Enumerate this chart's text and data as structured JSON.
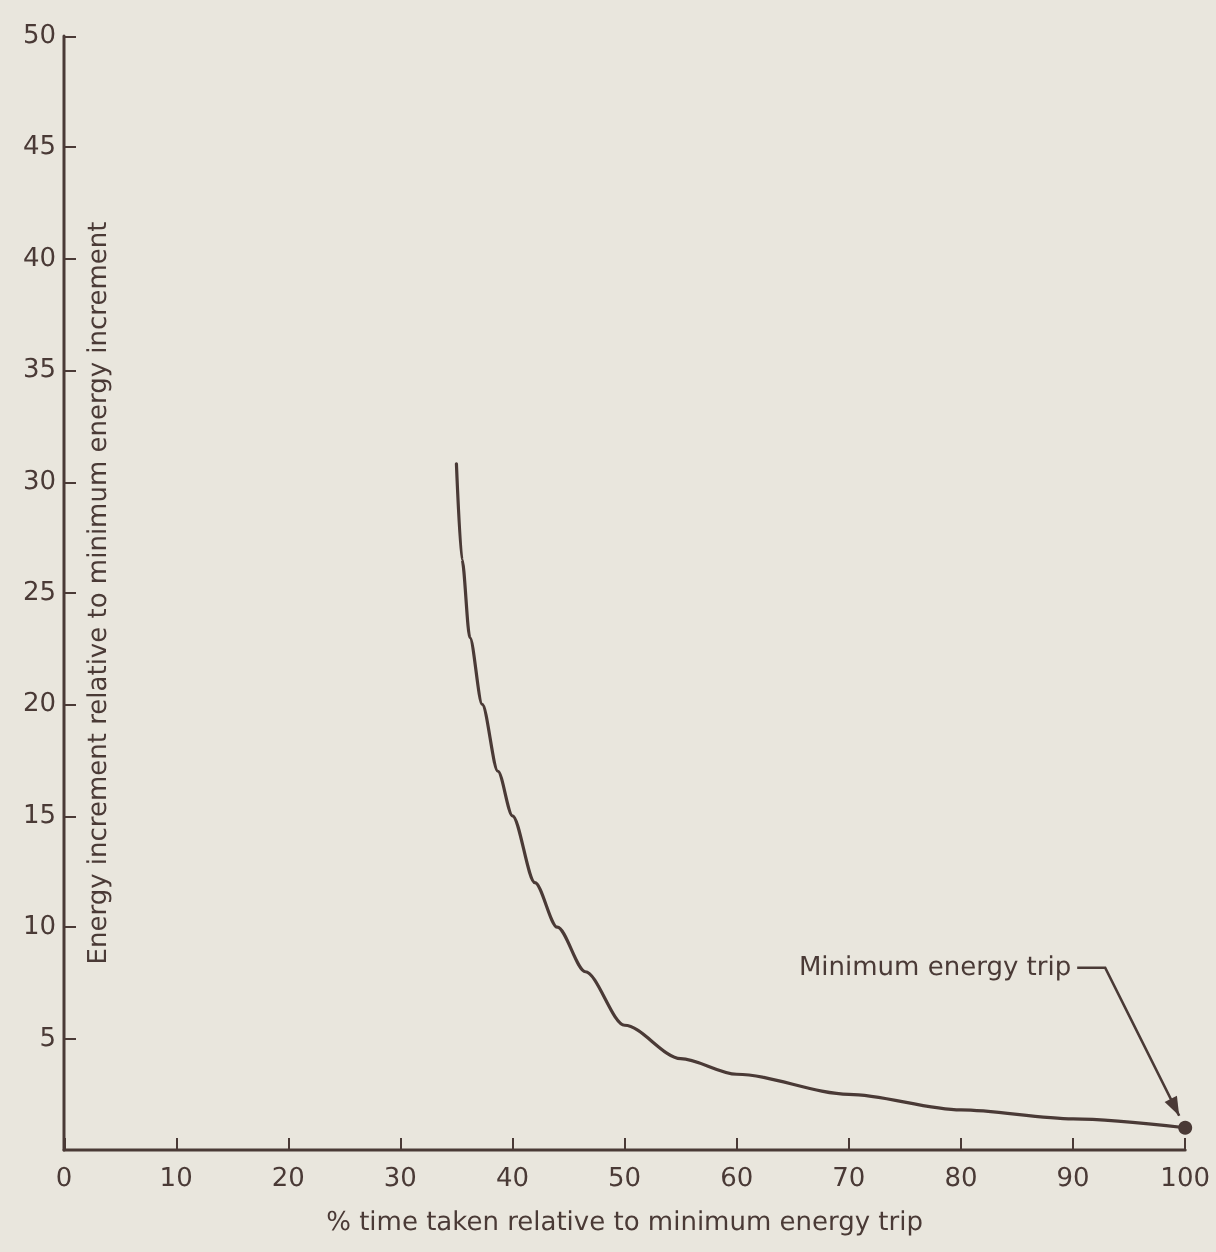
{
  "chart_data": {
    "type": "line",
    "xlabel": "% time taken relative to minimum energy trip",
    "ylabel": "Energy increment relative to minimum energy increment",
    "x": [
      35,
      35.5,
      36.2,
      37.3,
      38.7,
      40,
      42,
      44,
      46.5,
      50,
      55,
      60,
      70,
      80,
      90,
      100
    ],
    "series": [
      {
        "color": "#4a3a36",
        "values": [
          30.8,
          26.5,
          23,
          20,
          17,
          15,
          12,
          10,
          8,
          5.6,
          4.1,
          3.4,
          2.5,
          1.8,
          1.4,
          1.0
        ]
      }
    ],
    "xlim": [
      0,
      100
    ],
    "xticks": [
      0,
      10,
      20,
      30,
      40,
      50,
      60,
      70,
      80,
      90,
      100
    ],
    "ylim": [
      0,
      50
    ],
    "yticks": [
      5,
      10,
      15,
      20,
      25,
      30,
      35,
      40,
      45,
      50
    ],
    "annotations": [
      {
        "text": "Minimum energy trip",
        "x": 100,
        "y": 1
      }
    ],
    "grid": false,
    "marker": "none",
    "line_style": "solid"
  }
}
